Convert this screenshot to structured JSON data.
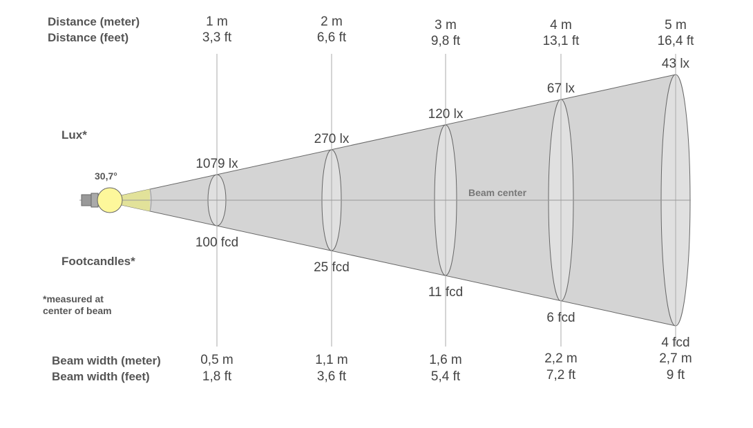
{
  "labels": {
    "distance_meter": "Distance (meter)",
    "distance_feet": "Distance (feet)",
    "lux": "Lux*",
    "footcandles": "Footcandles*",
    "note_line1": "*measured at",
    "note_line2": "center of beam",
    "beam_width_meter": "Beam width (meter)",
    "beam_width_feet": "Beam width (feet)",
    "beam_center": "Beam center",
    "beam_angle": "30,7°"
  },
  "colors": {
    "beam": "#d4d4d4",
    "bulb": "#fdf79b",
    "near_beam": "#e2e29a",
    "line": "#666666"
  },
  "columns": [
    {
      "dist_m": "1 m",
      "dist_ft": "3,3 ft",
      "lux": "1079 lx",
      "fcd": "100 fcd",
      "width_m": "0,5 m",
      "width_ft": "1,8 ft"
    },
    {
      "dist_m": "2 m",
      "dist_ft": "6,6 ft",
      "lux": "270 lx",
      "fcd": "25 fcd",
      "width_m": "1,1 m",
      "width_ft": "3,6 ft"
    },
    {
      "dist_m": "3 m",
      "dist_ft": "9,8 ft",
      "lux": "120 lx",
      "fcd": "11 fcd",
      "width_m": "1,6 m",
      "width_ft": "5,4 ft"
    },
    {
      "dist_m": "4 m",
      "dist_ft": "13,1 ft",
      "lux": "67 lx",
      "fcd": "6 fcd",
      "width_m": "2,2 m",
      "width_ft": "7,2 ft"
    },
    {
      "dist_m": "5 m",
      "dist_ft": "16,4 ft",
      "lux": "43 lx",
      "fcd": "4 fcd",
      "width_m": "2,7 m",
      "width_ft": "9 ft"
    }
  ]
}
